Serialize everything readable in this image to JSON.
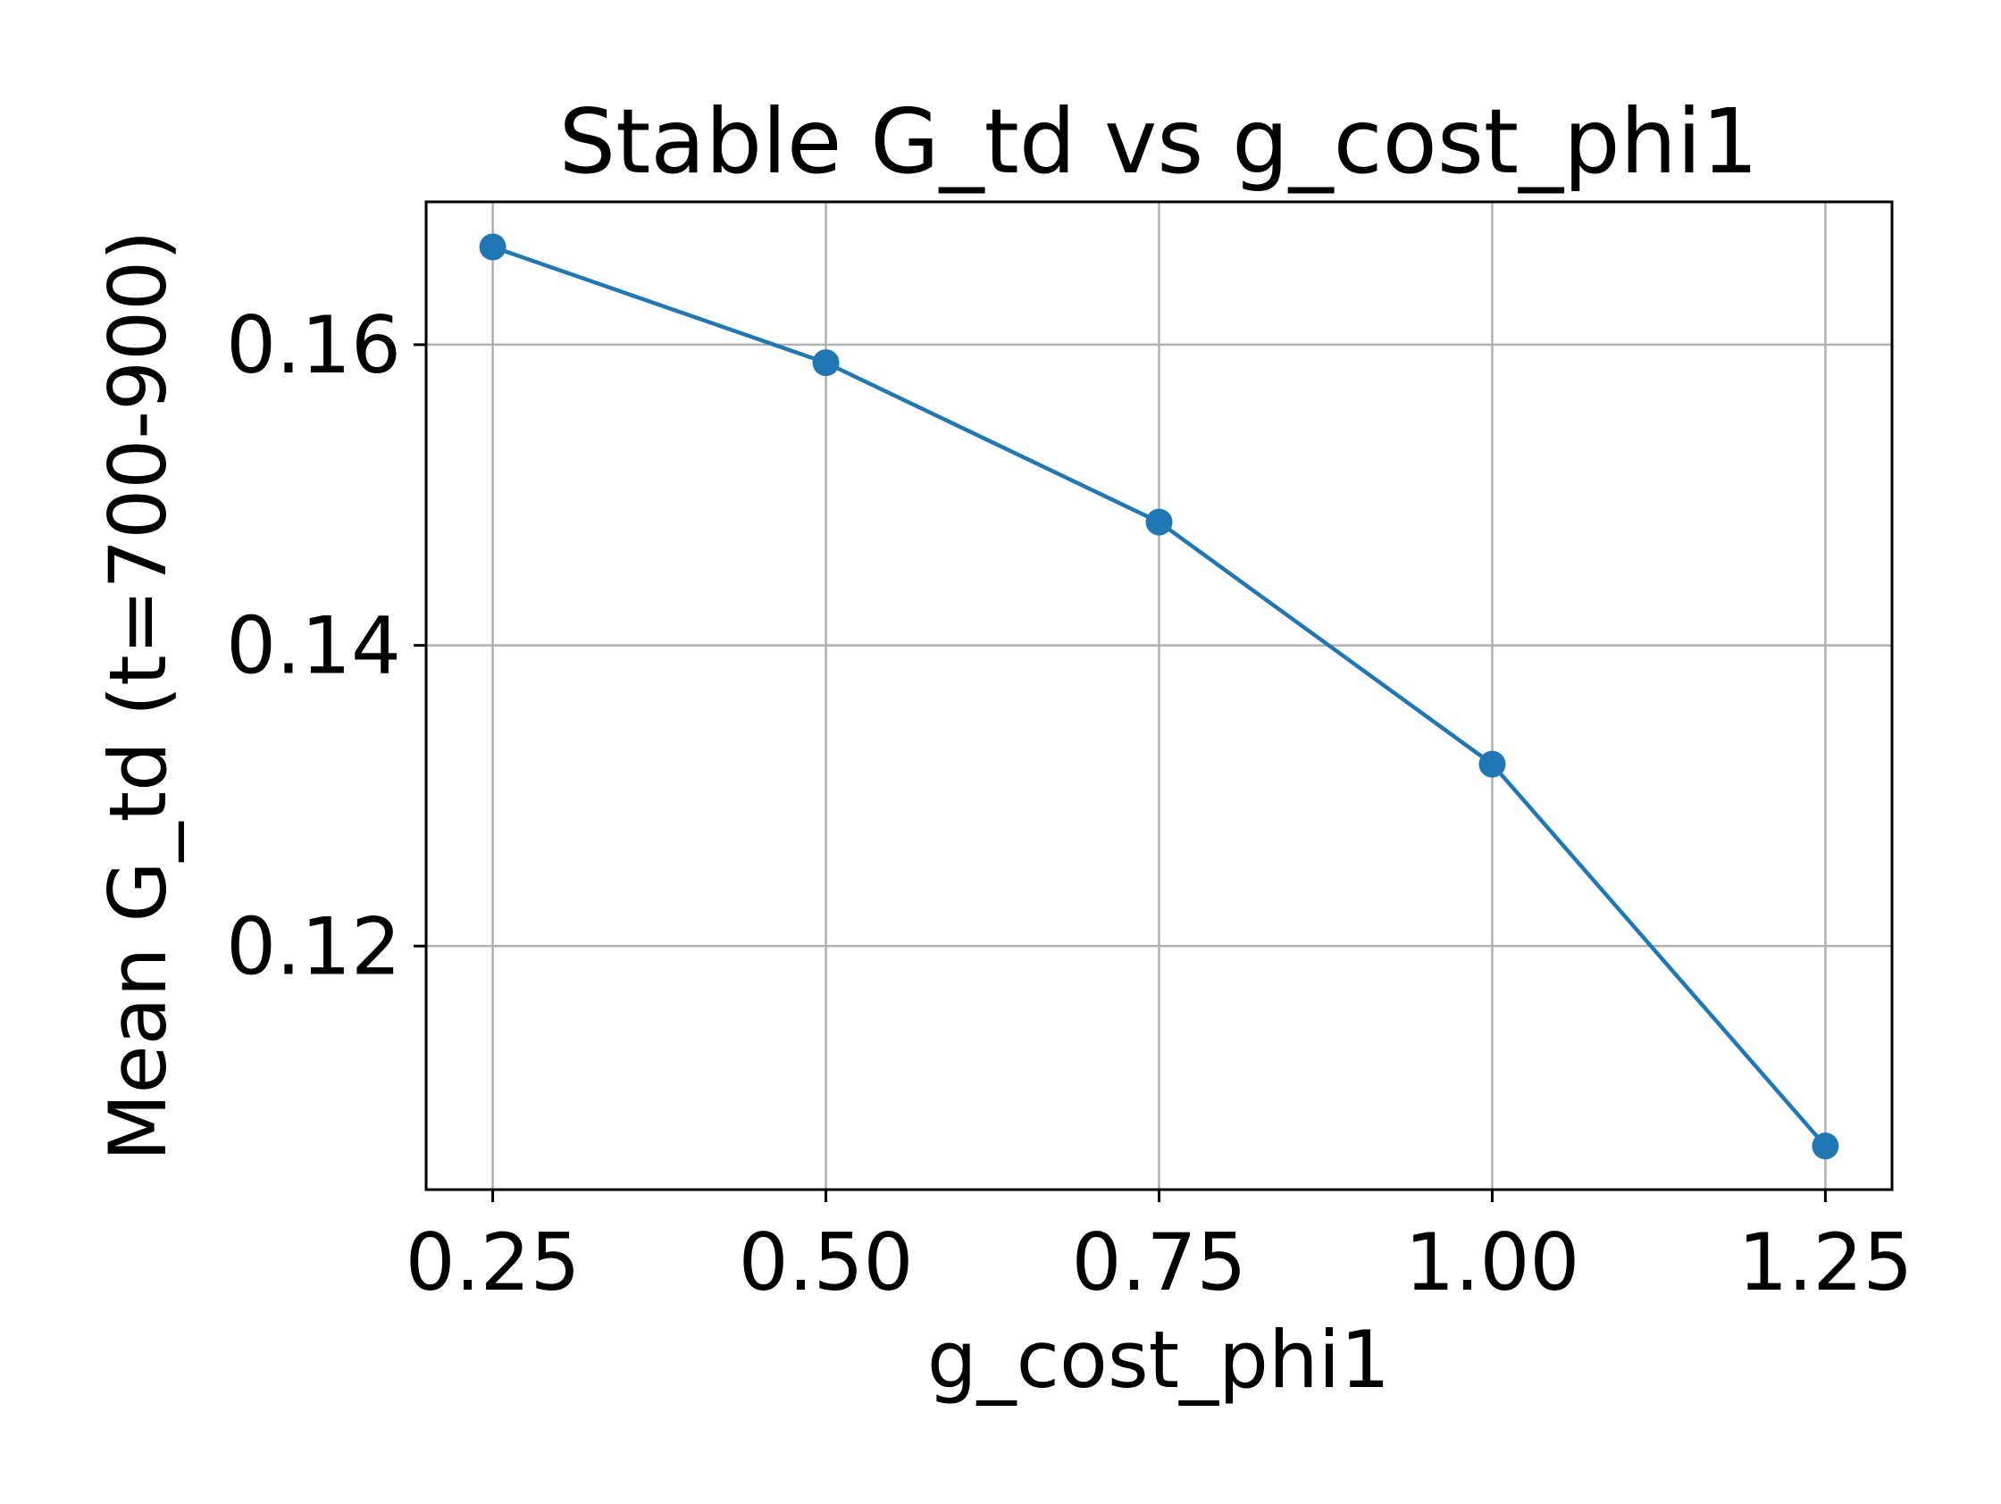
{
  "chart_data": {
    "type": "line",
    "title": "Stable G_td vs g_cost_phi1",
    "xlabel": "g_cost_phi1",
    "ylabel": "Mean G_td (t=700-900)",
    "x": [
      0.25,
      0.5,
      0.75,
      1.0,
      1.25
    ],
    "series": [
      {
        "values": [
          0.1665,
          0.1588,
          0.1482,
          0.1321,
          0.1067
        ],
        "color": "#1f77b4",
        "marker": "circle"
      }
    ],
    "xlim": [
      0.2,
      1.3
    ],
    "ylim": [
      0.1038,
      0.1695
    ],
    "xticks": [
      {
        "value": 0.25,
        "label": "0.25"
      },
      {
        "value": 0.5,
        "label": "0.50"
      },
      {
        "value": 0.75,
        "label": "0.75"
      },
      {
        "value": 1.0,
        "label": "1.00"
      },
      {
        "value": 1.25,
        "label": "1.25"
      }
    ],
    "yticks": [
      {
        "value": 0.12,
        "label": "0.12"
      },
      {
        "value": 0.14,
        "label": "0.14"
      },
      {
        "value": 0.16,
        "label": "0.16"
      }
    ],
    "grid": true,
    "legend": "none"
  }
}
